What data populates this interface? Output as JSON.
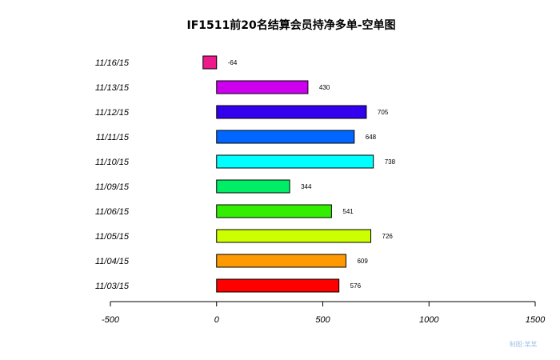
{
  "chart_data": {
    "type": "bar",
    "orientation": "horizontal",
    "title": "IF1511前20名结算会员持净多单-空单图",
    "categories": [
      "11/16/15",
      "11/13/15",
      "11/12/15",
      "11/11/15",
      "11/10/15",
      "11/09/15",
      "11/06/15",
      "11/05/15",
      "11/04/15",
      "11/03/15"
    ],
    "values": [
      -64,
      430,
      705,
      648,
      738,
      344,
      541,
      726,
      609,
      576
    ],
    "colors": [
      "#ee1a8c",
      "#cc00ee",
      "#3300ee",
      "#0066ff",
      "#00ffff",
      "#00ee66",
      "#33ee00",
      "#ccff00",
      "#ff9900",
      "#ff0000"
    ],
    "xlim": [
      -500,
      1500
    ],
    "xticks": [
      -500,
      0,
      500,
      1000,
      1500
    ],
    "grid": false,
    "legend": "none"
  },
  "watermark": "制图:某某"
}
